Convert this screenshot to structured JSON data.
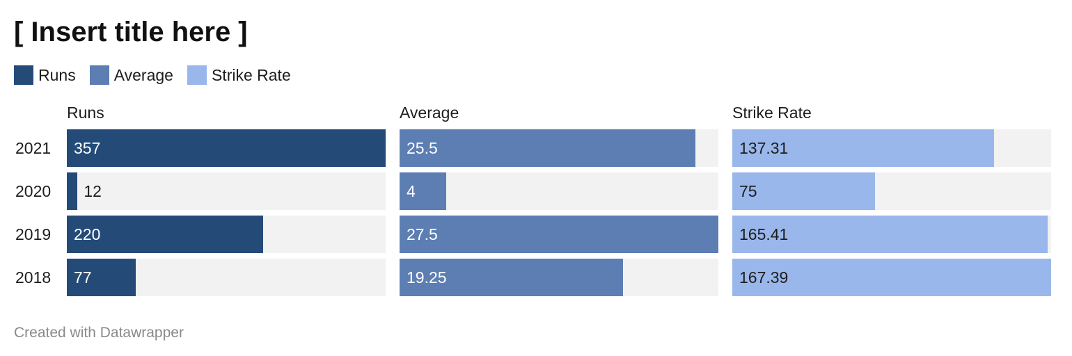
{
  "title": "[ Insert title here ]",
  "footer": "Created with Datawrapper",
  "colors": {
    "runs": "#244b78",
    "average": "#5c7eb3",
    "strike_rate": "#99b7eb",
    "track": "#f2f2f2"
  },
  "legend": [
    {
      "label": "Runs",
      "color": "#244b78"
    },
    {
      "label": "Average",
      "color": "#5c7eb3"
    },
    {
      "label": "Strike Rate",
      "color": "#99b7eb"
    }
  ],
  "chart_data": {
    "type": "bar",
    "orientation": "horizontal",
    "title": "[ Insert title here ]",
    "categories": [
      "2021",
      "2020",
      "2019",
      "2018"
    ],
    "series": [
      {
        "name": "Runs",
        "color": "#244b78",
        "value_labels": [
          "357",
          "12",
          "220",
          "77"
        ],
        "values": [
          357,
          12,
          220,
          77
        ],
        "max": 357
      },
      {
        "name": "Average",
        "color": "#5c7eb3",
        "value_labels": [
          "25.5",
          "4",
          "27.5",
          "19.25"
        ],
        "values": [
          25.5,
          4,
          27.5,
          19.25
        ],
        "max": 27.5
      },
      {
        "name": "Strike Rate",
        "color": "#99b7eb",
        "value_labels": [
          "137.31",
          "75",
          "165.41",
          "167.39"
        ],
        "values": [
          137.31,
          75,
          165.41,
          167.39
        ],
        "max": 167.39
      }
    ],
    "legend_position": "top-left",
    "grid": false
  }
}
